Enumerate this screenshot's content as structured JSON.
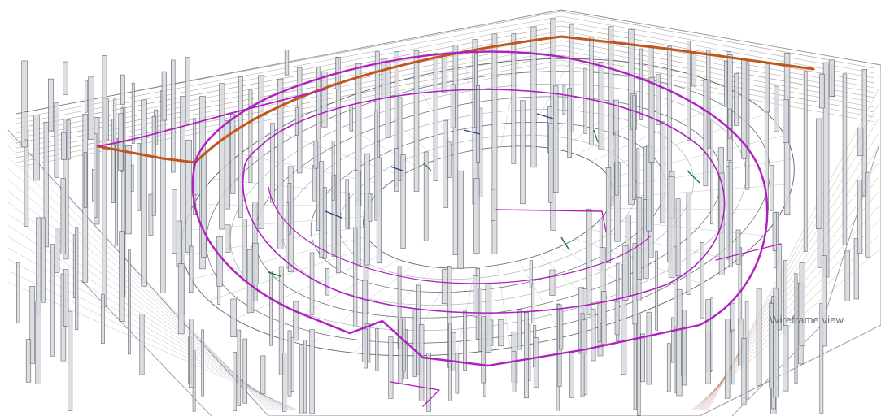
{
  "caption": "Wireframe view",
  "wireframe": {
    "background": "#ffffff",
    "structure_color": "#2a2e36",
    "secondary_color": "#8a8f98",
    "column_color": "#4a4f59",
    "column_fill": "#d6d9de",
    "duct_color_primary": "#b01fbf",
    "duct_color_secondary": "#c0561c",
    "pipe_color": "#1f7d2e",
    "cable_color": "#2d3f8a"
  }
}
